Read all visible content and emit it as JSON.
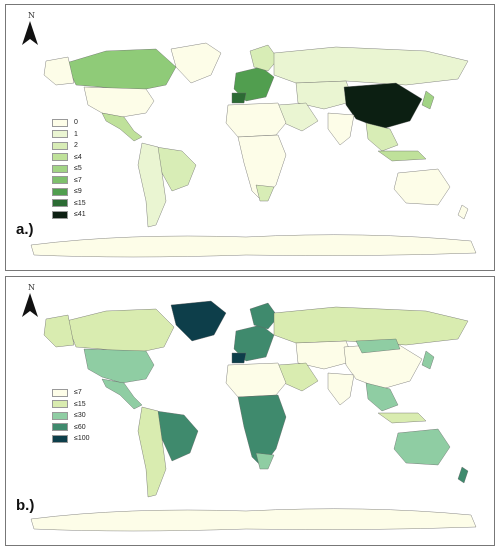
{
  "north_label": "N",
  "map_a": {
    "label": "a.)",
    "legend": [
      {
        "label": "0",
        "color": "#fdfde8"
      },
      {
        "label": "1",
        "color": "#eaf5d2"
      },
      {
        "label": "2",
        "color": "#d8edb6"
      },
      {
        "label": "≤4",
        "color": "#bfe19a"
      },
      {
        "label": "≤5",
        "color": "#a2d485"
      },
      {
        "label": "≤7",
        "color": "#7ec06d"
      },
      {
        "label": "≤9",
        "color": "#519e4f"
      },
      {
        "label": "≤15",
        "color": "#2c6b34"
      },
      {
        "label": "≤41",
        "color": "#0c1f12"
      }
    ]
  },
  "map_b": {
    "label": "b.)",
    "legend": [
      {
        "label": "≤7",
        "color": "#fdfde8"
      },
      {
        "label": "≤15",
        "color": "#d9ecb0"
      },
      {
        "label": "≤30",
        "color": "#8fcda3"
      },
      {
        "label": "≤60",
        "color": "#3f8a6d"
      },
      {
        "label": "≤100",
        "color": "#0d3e4a"
      }
    ]
  }
}
